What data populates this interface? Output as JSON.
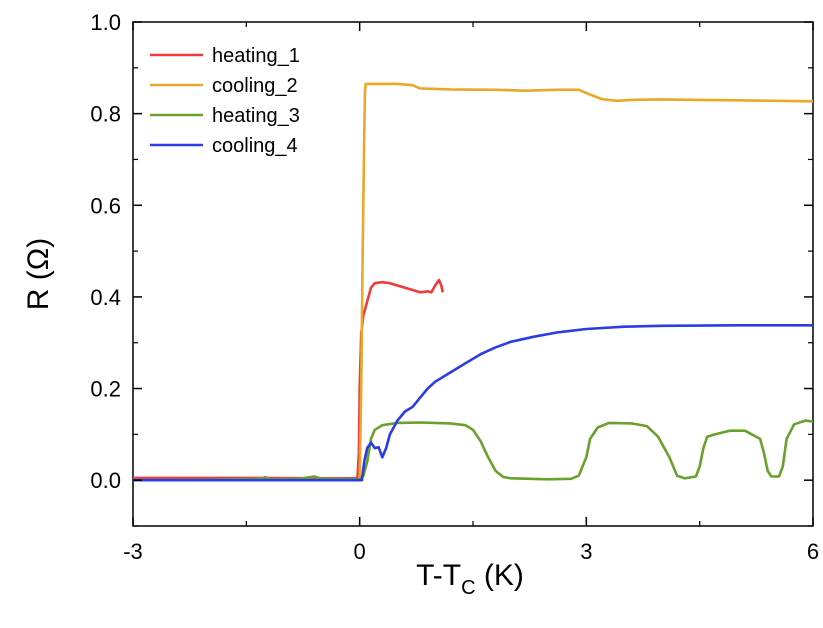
{
  "chart_data": {
    "type": "line",
    "xlabel": "T-T",
    "xlabel_subscript": "C",
    "xlabel_unit": " (K)",
    "ylabel": "R (Ω)",
    "xlim": [
      -3,
      6
    ],
    "ylim": [
      -0.1,
      1.0
    ],
    "x_ticks": [
      -3,
      0,
      3,
      6
    ],
    "x_tick_labels": [
      "-3",
      "0",
      "3",
      "6"
    ],
    "y_ticks": [
      0.0,
      0.2,
      0.4,
      0.6,
      0.8,
      1.0
    ],
    "y_tick_labels": [
      "0.0",
      "0.2",
      "0.4",
      "0.6",
      "0.8",
      "1.0"
    ],
    "grid": false,
    "legend_position": "top-left",
    "series": [
      {
        "name": "heating_1",
        "color": "#ee3b3b",
        "points": [
          [
            -3,
            0.005
          ],
          [
            -1.5,
            0.005
          ],
          [
            -0.5,
            0.004
          ],
          [
            -0.03,
            0.004
          ],
          [
            -0.01,
            0.06
          ],
          [
            0.0,
            0.2
          ],
          [
            0.02,
            0.32
          ],
          [
            0.05,
            0.36
          ],
          [
            0.1,
            0.39
          ],
          [
            0.15,
            0.42
          ],
          [
            0.2,
            0.43
          ],
          [
            0.3,
            0.432
          ],
          [
            0.4,
            0.43
          ],
          [
            0.5,
            0.425
          ],
          [
            0.6,
            0.42
          ],
          [
            0.7,
            0.415
          ],
          [
            0.8,
            0.41
          ],
          [
            0.9,
            0.412
          ],
          [
            0.95,
            0.41
          ],
          [
            1.0,
            0.425
          ],
          [
            1.05,
            0.437
          ],
          [
            1.08,
            0.425
          ],
          [
            1.1,
            0.41
          ]
        ]
      },
      {
        "name": "cooling_2",
        "color": "#e8a82a",
        "points": [
          [
            -3,
            0.0
          ],
          [
            -1.5,
            0.0
          ],
          [
            -0.2,
            0.0
          ],
          [
            0.0,
            0.0
          ],
          [
            0.02,
            0.2
          ],
          [
            0.04,
            0.5
          ],
          [
            0.06,
            0.75
          ],
          [
            0.07,
            0.85
          ],
          [
            0.08,
            0.865
          ],
          [
            0.5,
            0.865
          ],
          [
            0.7,
            0.862
          ],
          [
            0.8,
            0.855
          ],
          [
            1.2,
            0.853
          ],
          [
            1.8,
            0.852
          ],
          [
            2.2,
            0.85
          ],
          [
            2.6,
            0.852
          ],
          [
            2.9,
            0.852
          ],
          [
            3.0,
            0.845
          ],
          [
            3.2,
            0.832
          ],
          [
            3.4,
            0.828
          ],
          [
            3.6,
            0.83
          ],
          [
            4.0,
            0.831
          ],
          [
            4.5,
            0.83
          ],
          [
            5.0,
            0.829
          ],
          [
            5.5,
            0.828
          ],
          [
            6.0,
            0.827
          ]
        ]
      },
      {
        "name": "heating_3",
        "color": "#6aa02c",
        "points": [
          [
            -3,
            0.0
          ],
          [
            -2,
            0.001
          ],
          [
            -1.3,
            0.003
          ],
          [
            -1.25,
            0.007
          ],
          [
            -1.2,
            0.002
          ],
          [
            -0.8,
            0.003
          ],
          [
            -0.6,
            0.008
          ],
          [
            -0.5,
            0.003
          ],
          [
            0.0,
            0.002
          ],
          [
            0.05,
            0.01
          ],
          [
            0.1,
            0.04
          ],
          [
            0.15,
            0.09
          ],
          [
            0.2,
            0.11
          ],
          [
            0.3,
            0.12
          ],
          [
            0.5,
            0.125
          ],
          [
            0.8,
            0.126
          ],
          [
            1.2,
            0.124
          ],
          [
            1.4,
            0.12
          ],
          [
            1.5,
            0.11
          ],
          [
            1.6,
            0.085
          ],
          [
            1.7,
            0.05
          ],
          [
            1.8,
            0.02
          ],
          [
            1.9,
            0.007
          ],
          [
            2.0,
            0.004
          ],
          [
            2.5,
            0.002
          ],
          [
            2.8,
            0.003
          ],
          [
            2.9,
            0.01
          ],
          [
            3.0,
            0.05
          ],
          [
            3.05,
            0.09
          ],
          [
            3.15,
            0.115
          ],
          [
            3.3,
            0.125
          ],
          [
            3.6,
            0.124
          ],
          [
            3.8,
            0.118
          ],
          [
            3.95,
            0.095
          ],
          [
            4.1,
            0.05
          ],
          [
            4.2,
            0.01
          ],
          [
            4.3,
            0.004
          ],
          [
            4.45,
            0.008
          ],
          [
            4.5,
            0.03
          ],
          [
            4.55,
            0.07
          ],
          [
            4.6,
            0.095
          ],
          [
            4.7,
            0.1
          ],
          [
            4.9,
            0.108
          ],
          [
            5.1,
            0.108
          ],
          [
            5.3,
            0.09
          ],
          [
            5.35,
            0.06
          ],
          [
            5.4,
            0.02
          ],
          [
            5.45,
            0.008
          ],
          [
            5.55,
            0.008
          ],
          [
            5.6,
            0.03
          ],
          [
            5.65,
            0.09
          ],
          [
            5.75,
            0.122
          ],
          [
            5.9,
            0.13
          ],
          [
            6.0,
            0.128
          ]
        ]
      },
      {
        "name": "cooling_4",
        "color": "#2a3ce6",
        "points": [
          [
            -3,
            0.0
          ],
          [
            -1.5,
            0.0
          ],
          [
            0.0,
            0.0
          ],
          [
            0.03,
            0.0
          ],
          [
            0.06,
            0.04
          ],
          [
            0.1,
            0.07
          ],
          [
            0.15,
            0.082
          ],
          [
            0.2,
            0.07
          ],
          [
            0.25,
            0.072
          ],
          [
            0.3,
            0.05
          ],
          [
            0.35,
            0.07
          ],
          [
            0.4,
            0.1
          ],
          [
            0.5,
            0.13
          ],
          [
            0.6,
            0.15
          ],
          [
            0.7,
            0.16
          ],
          [
            0.8,
            0.18
          ],
          [
            0.9,
            0.2
          ],
          [
            1.0,
            0.215
          ],
          [
            1.2,
            0.235
          ],
          [
            1.4,
            0.255
          ],
          [
            1.6,
            0.275
          ],
          [
            1.8,
            0.29
          ],
          [
            2.0,
            0.302
          ],
          [
            2.3,
            0.313
          ],
          [
            2.6,
            0.322
          ],
          [
            3.0,
            0.33
          ],
          [
            3.5,
            0.335
          ],
          [
            4.0,
            0.337
          ],
          [
            5.0,
            0.338
          ],
          [
            6.0,
            0.338
          ]
        ]
      }
    ]
  }
}
